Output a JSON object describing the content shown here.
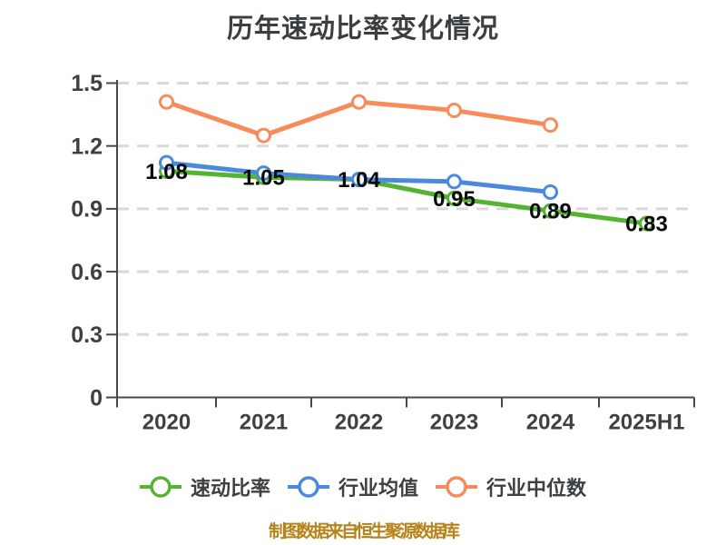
{
  "chart_data": {
    "type": "line",
    "title": "历年速动比率变化情况",
    "categories": [
      "2020",
      "2021",
      "2022",
      "2023",
      "2024",
      "2025H1"
    ],
    "series": [
      {
        "name": "速动比率",
        "color": "#55b332",
        "values": [
          1.08,
          1.05,
          1.04,
          0.95,
          0.89,
          0.83
        ],
        "data_labels": [
          "1.08",
          "1.05",
          "1.04",
          "0.95",
          "0.89",
          "0.83"
        ]
      },
      {
        "name": "行业均值",
        "color": "#4a89dc",
        "values": [
          1.12,
          1.07,
          1.04,
          1.03,
          0.98,
          null
        ],
        "data_labels": null
      },
      {
        "name": "行业中位数",
        "color": "#f78b5c",
        "values": [
          1.41,
          1.25,
          1.41,
          1.37,
          1.3,
          null
        ],
        "data_labels": null
      }
    ],
    "y_axis": {
      "tick_labels": [
        "0",
        "0.3",
        "0.6",
        "0.9",
        "1.2",
        "1.5"
      ],
      "tick_values": [
        0,
        0.3,
        0.6,
        0.9,
        1.2,
        1.5
      ],
      "min": 0,
      "max": 1.5,
      "grid": "horizontal-dashed"
    },
    "legend_position": "bottom",
    "marker": "circle-white-fill"
  },
  "footer": {
    "source_note": "制图数据来自恒生聚源数据库"
  },
  "style": {
    "title_color": "#3b3e41",
    "axis_color": "#45494c",
    "tick_label_color": "#3d4144",
    "grid_color": "#d9d9d9",
    "data_label_color": "#0a0a0a",
    "source_note_color": "#b5831a",
    "background": "#ffffff"
  }
}
